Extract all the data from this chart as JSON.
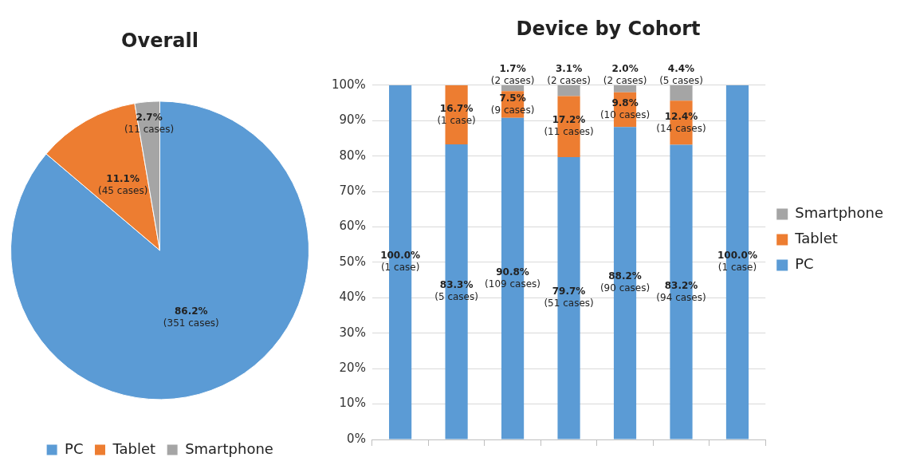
{
  "chart_data": [
    {
      "type": "pie",
      "title": "Overall",
      "categories": [
        "PC",
        "Tablet",
        "Smartphone"
      ],
      "values": [
        86.2,
        11.1,
        2.7
      ],
      "colors": [
        "#5b9bd5",
        "#ed7d31",
        "#a5a5a5"
      ],
      "value_labels": [
        "86.2%\n(351 cases)",
        "11.1%\n(45 cases)",
        "2.7%\n(11 cases)"
      ],
      "legend": "bottom"
    },
    {
      "type": "bar",
      "title": "Device by Cohort",
      "categories": [
        null,
        null,
        null,
        null,
        null,
        null,
        null
      ],
      "stacked": true,
      "series": [
        {
          "name": "PC",
          "color": "#5b9bd5",
          "values": [
            100.0,
            83.3,
            90.8,
            79.7,
            88.2,
            83.2,
            100.0
          ],
          "value_labels": [
            "100.0%\n(1 case)",
            "83.3%\n(5 cases)",
            "90.8%\n(109 cases)",
            "79.7%\n(51 cases)",
            "88.2%\n(90 cases)",
            "83.2%\n(94 cases)",
            "100.0%\n(1 case)"
          ]
        },
        {
          "name": "Tablet",
          "color": "#ed7d31",
          "values": [
            0,
            16.7,
            7.5,
            17.2,
            9.8,
            12.4,
            0
          ],
          "value_labels": [
            null,
            "16.7%\n(1 case)",
            "7.5%\n(9 cases)",
            "17.2%\n(11 cases)",
            "9.8%\n(10 cases)",
            "12.4%\n(14 cases)",
            null
          ]
        },
        {
          "name": "Smartphone",
          "color": "#a5a5a5",
          "values": [
            0,
            0,
            1.7,
            3.1,
            2.0,
            4.4,
            0
          ],
          "value_labels": [
            null,
            null,
            "1.7%\n(2 cases)",
            "3.1%\n(2 cases)",
            "2.0%\n(2 cases)",
            "4.4%\n(5 cases)",
            null
          ]
        }
      ],
      "ylim": [
        0,
        100
      ],
      "yticks": [
        {
          "value": 0,
          "label": "0%"
        },
        {
          "value": 10,
          "label": "10%"
        },
        {
          "value": 20,
          "label": "20%"
        },
        {
          "value": 30,
          "label": "30%"
        },
        {
          "value": 40,
          "label": "40%"
        },
        {
          "value": 50,
          "label": "50%"
        },
        {
          "value": 60,
          "label": "60%"
        },
        {
          "value": 70,
          "label": "70%"
        },
        {
          "value": 80,
          "label": "80%"
        },
        {
          "value": 90,
          "label": "90%"
        },
        {
          "value": 100,
          "label": "100%"
        }
      ],
      "grid": "y",
      "legend": "right"
    }
  ]
}
